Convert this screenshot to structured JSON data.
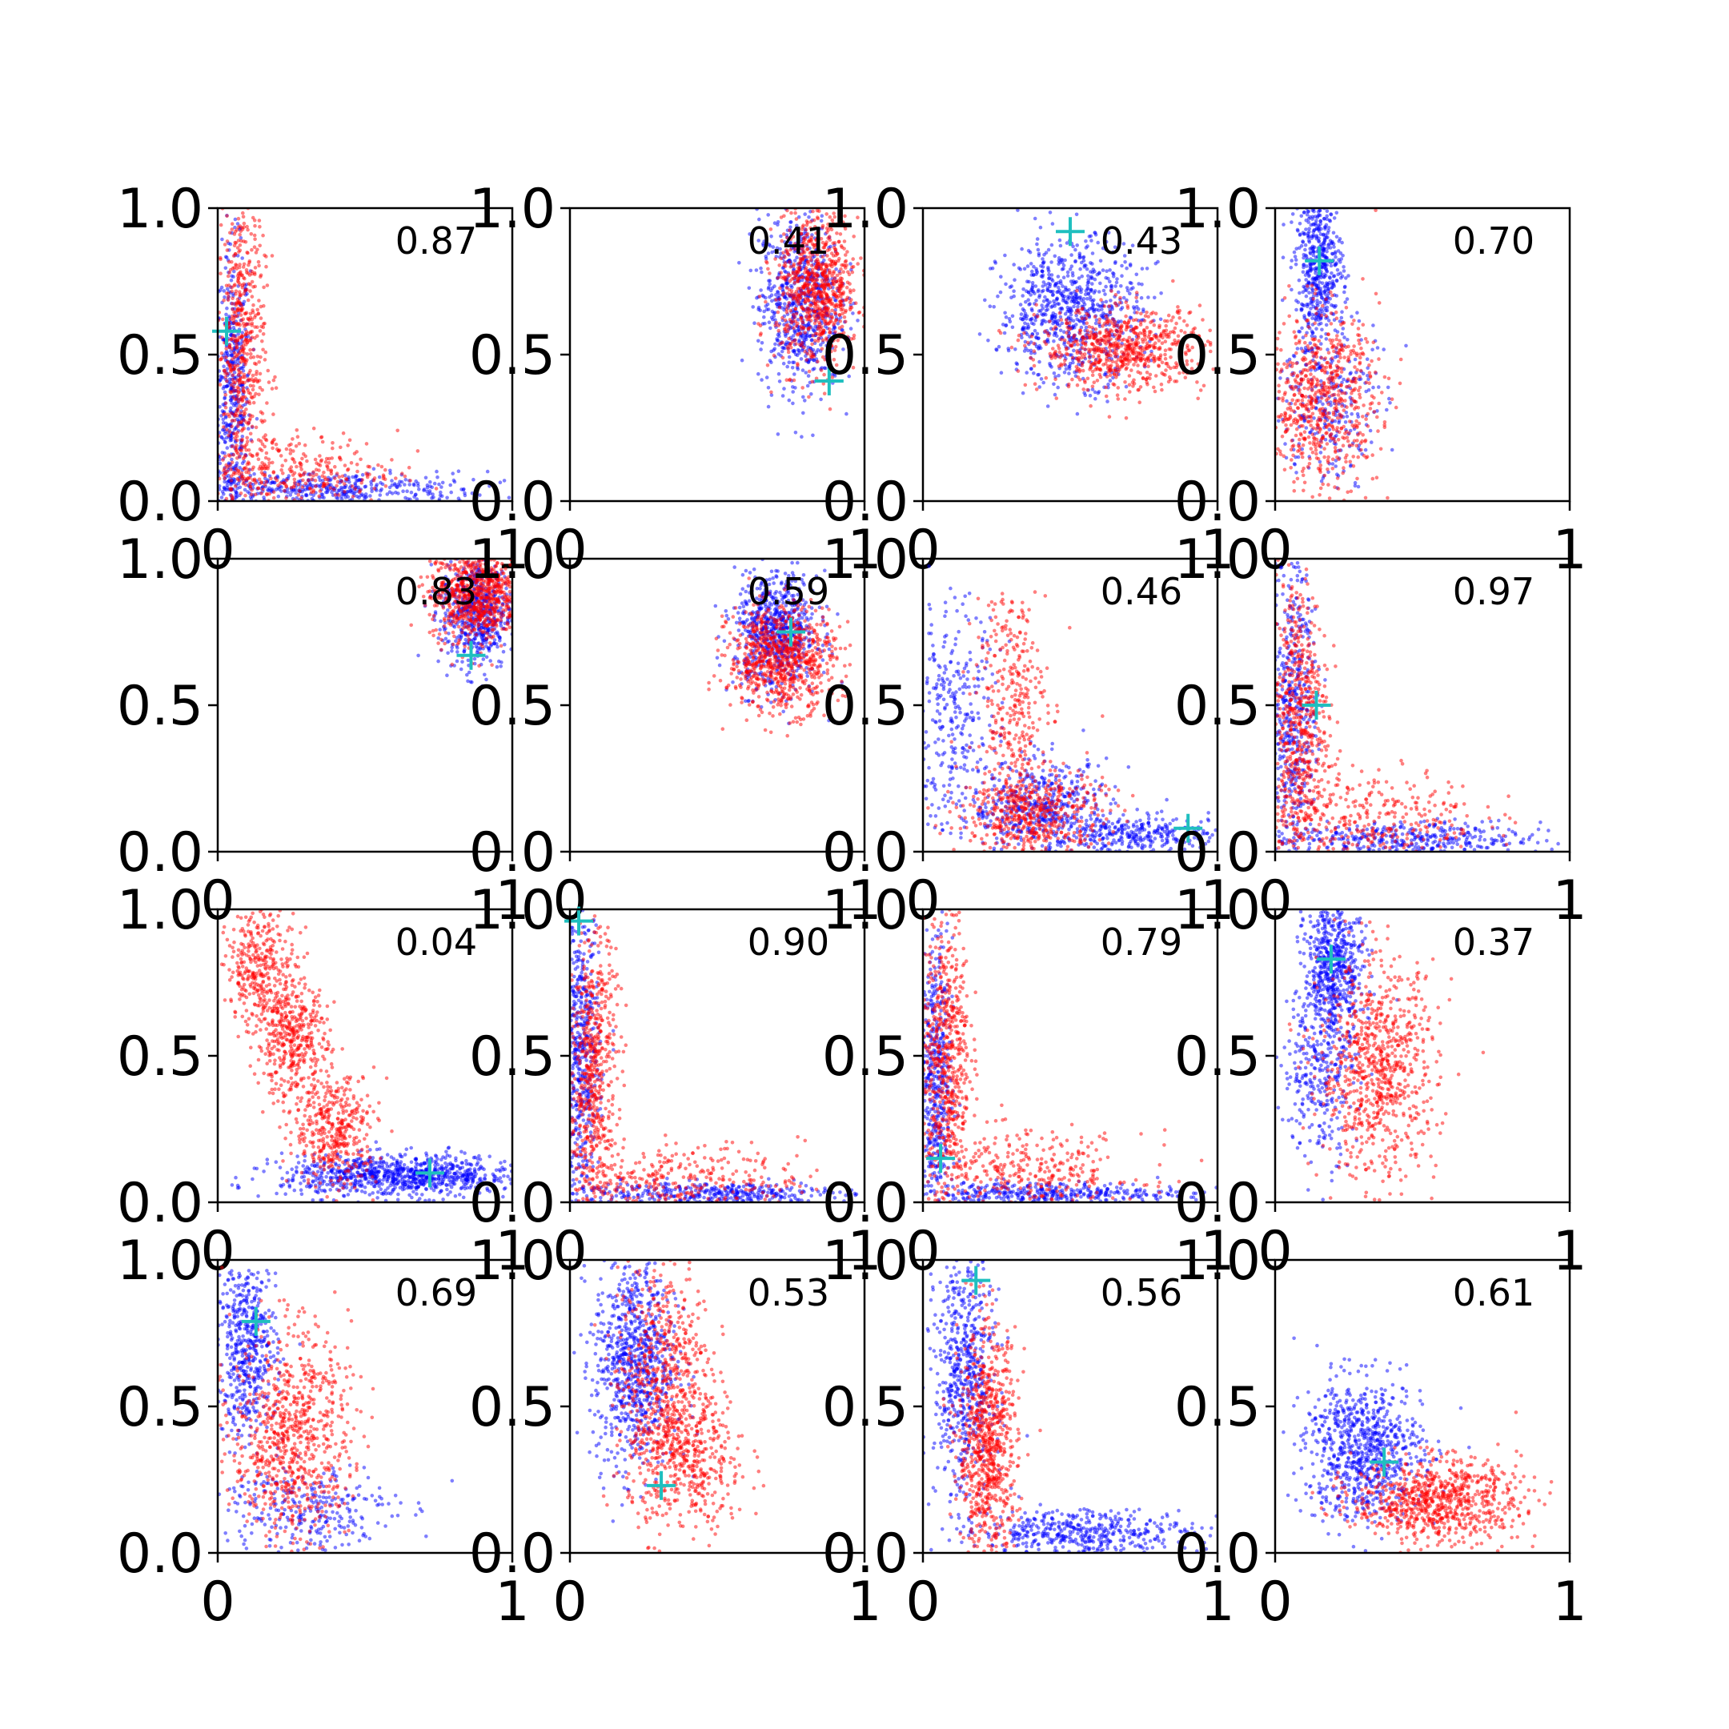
{
  "figure": {
    "rows": 4,
    "cols": 4,
    "colors": {
      "series_a": "#0000ff",
      "series_b": "#ff0000",
      "marker": "#1fbfbf",
      "axes": "#000000"
    }
  },
  "chart_data": [
    {
      "type": "scatter",
      "panel": 1,
      "label": "0.87",
      "xlim": [
        0,
        1
      ],
      "ylim": [
        0,
        1
      ],
      "xticks": [
        "0",
        "1"
      ],
      "yticks": [
        "0.0",
        "0.5",
        "1.0"
      ],
      "marker": {
        "x": 0.03,
        "y": 0.58
      },
      "series": [
        {
          "color": "#0000ff",
          "clusters": [
            {
              "cx": 0.05,
              "cy": 0.35,
              "sx": 0.03,
              "sy": 0.25,
              "n": 500
            },
            {
              "cx": 0.35,
              "cy": 0.04,
              "sx": 0.28,
              "sy": 0.03,
              "n": 450
            }
          ]
        },
        {
          "color": "#ff0000",
          "clusters": [
            {
              "cx": 0.08,
              "cy": 0.5,
              "sx": 0.04,
              "sy": 0.28,
              "n": 600
            },
            {
              "cx": 0.25,
              "cy": 0.1,
              "sx": 0.18,
              "sy": 0.07,
              "n": 350
            }
          ]
        }
      ]
    },
    {
      "type": "scatter",
      "panel": 2,
      "label": "0.41",
      "xlim": [
        0,
        1
      ],
      "ylim": [
        0,
        1
      ],
      "xticks": [
        "0",
        "1"
      ],
      "yticks": [
        "0.0",
        "0.5",
        "1.0"
      ],
      "marker": {
        "x": 0.88,
        "y": 0.41
      },
      "series": [
        {
          "color": "#0000ff",
          "clusters": [
            {
              "cx": 0.78,
              "cy": 0.68,
              "sx": 0.07,
              "sy": 0.15,
              "n": 700
            }
          ]
        },
        {
          "color": "#ff0000",
          "clusters": [
            {
              "cx": 0.84,
              "cy": 0.72,
              "sx": 0.07,
              "sy": 0.13,
              "n": 800
            }
          ]
        }
      ]
    },
    {
      "type": "scatter",
      "panel": 3,
      "label": "0.43",
      "xlim": [
        0,
        1
      ],
      "ylim": [
        0,
        1
      ],
      "xticks": [
        "0",
        "1"
      ],
      "yticks": [
        "0.0",
        "0.5",
        "1.0"
      ],
      "marker": {
        "x": 0.5,
        "y": 0.92
      },
      "series": [
        {
          "color": "#0000ff",
          "clusters": [
            {
              "cx": 0.5,
              "cy": 0.65,
              "sx": 0.12,
              "sy": 0.12,
              "n": 800
            }
          ]
        },
        {
          "color": "#ff0000",
          "clusters": [
            {
              "cx": 0.68,
              "cy": 0.52,
              "sx": 0.14,
              "sy": 0.07,
              "n": 700
            }
          ]
        }
      ]
    },
    {
      "type": "scatter",
      "panel": 4,
      "label": "0.70",
      "xlim": [
        0,
        1
      ],
      "ylim": [
        0,
        1
      ],
      "xticks": [
        "0",
        "1"
      ],
      "yticks": [
        "0.0",
        "0.5",
        "1.0"
      ],
      "marker": {
        "x": 0.15,
        "y": 0.82
      },
      "series": [
        {
          "color": "#0000ff",
          "clusters": [
            {
              "cx": 0.15,
              "cy": 0.8,
              "sx": 0.04,
              "sy": 0.12,
              "n": 500
            },
            {
              "cx": 0.18,
              "cy": 0.35,
              "sx": 0.08,
              "sy": 0.15,
              "n": 300
            }
          ]
        },
        {
          "color": "#ff0000",
          "clusters": [
            {
              "cx": 0.15,
              "cy": 0.35,
              "sx": 0.1,
              "sy": 0.15,
              "n": 700
            }
          ]
        }
      ]
    },
    {
      "type": "scatter",
      "panel": 5,
      "label": "0.83",
      "xlim": [
        0,
        1
      ],
      "ylim": [
        0,
        1
      ],
      "xticks": [
        "0",
        "1"
      ],
      "yticks": [
        "0.0",
        "0.5",
        "1.0"
      ],
      "marker": {
        "x": 0.86,
        "y": 0.67
      },
      "series": [
        {
          "color": "#0000ff",
          "clusters": [
            {
              "cx": 0.88,
              "cy": 0.82,
              "sx": 0.06,
              "sy": 0.1,
              "n": 600
            }
          ]
        },
        {
          "color": "#ff0000",
          "clusters": [
            {
              "cx": 0.88,
              "cy": 0.88,
              "sx": 0.08,
              "sy": 0.08,
              "n": 800
            }
          ]
        }
      ]
    },
    {
      "type": "scatter",
      "panel": 6,
      "label": "0.59",
      "xlim": [
        0,
        1
      ],
      "ylim": [
        0,
        1
      ],
      "xticks": [
        "0",
        "1"
      ],
      "yticks": [
        "0.0",
        "0.5",
        "1.0"
      ],
      "marker": {
        "x": 0.75,
        "y": 0.75
      },
      "series": [
        {
          "color": "#0000ff",
          "clusters": [
            {
              "cx": 0.7,
              "cy": 0.75,
              "sx": 0.07,
              "sy": 0.1,
              "n": 700
            }
          ]
        },
        {
          "color": "#ff0000",
          "clusters": [
            {
              "cx": 0.72,
              "cy": 0.66,
              "sx": 0.09,
              "sy": 0.09,
              "n": 800
            }
          ]
        }
      ]
    },
    {
      "type": "scatter",
      "panel": 7,
      "label": "0.46",
      "xlim": [
        0,
        1
      ],
      "ylim": [
        0,
        1
      ],
      "xticks": [
        "0",
        "1"
      ],
      "yticks": [
        "0.0",
        "0.5",
        "1.0"
      ],
      "marker": {
        "x": 0.9,
        "y": 0.08
      },
      "series": [
        {
          "color": "#0000ff",
          "clusters": [
            {
              "cx": 0.1,
              "cy": 0.45,
              "sx": 0.08,
              "sy": 0.2,
              "n": 300
            },
            {
              "cx": 0.4,
              "cy": 0.15,
              "sx": 0.12,
              "sy": 0.08,
              "n": 500
            },
            {
              "cx": 0.75,
              "cy": 0.06,
              "sx": 0.15,
              "sy": 0.03,
              "n": 300
            }
          ]
        },
        {
          "color": "#ff0000",
          "clusters": [
            {
              "cx": 0.3,
              "cy": 0.5,
              "sx": 0.06,
              "sy": 0.22,
              "n": 350
            },
            {
              "cx": 0.38,
              "cy": 0.12,
              "sx": 0.12,
              "sy": 0.08,
              "n": 500
            }
          ]
        }
      ]
    },
    {
      "type": "scatter",
      "panel": 8,
      "label": "0.97",
      "xlim": [
        0,
        1
      ],
      "ylim": [
        0,
        1
      ],
      "xticks": [
        "0",
        "1"
      ],
      "yticks": [
        "0.0",
        "0.5",
        "1.0"
      ],
      "marker": {
        "x": 0.14,
        "y": 0.5
      },
      "series": [
        {
          "color": "#0000ff",
          "clusters": [
            {
              "cx": 0.06,
              "cy": 0.5,
              "sx": 0.04,
              "sy": 0.25,
              "n": 500
            },
            {
              "cx": 0.4,
              "cy": 0.04,
              "sx": 0.25,
              "sy": 0.03,
              "n": 400
            }
          ]
        },
        {
          "color": "#ff0000",
          "clusters": [
            {
              "cx": 0.08,
              "cy": 0.45,
              "sx": 0.05,
              "sy": 0.25,
              "n": 600
            },
            {
              "cx": 0.3,
              "cy": 0.12,
              "sx": 0.2,
              "sy": 0.08,
              "n": 350
            }
          ]
        }
      ]
    },
    {
      "type": "scatter",
      "panel": 9,
      "label": "0.04",
      "xlim": [
        0,
        1
      ],
      "ylim": [
        0,
        1
      ],
      "xticks": [
        "0",
        "1"
      ],
      "yticks": [
        "0.0",
        "0.5",
        "1.0"
      ],
      "marker": {
        "x": 0.72,
        "y": 0.1
      },
      "series": [
        {
          "color": "#0000ff",
          "clusters": [
            {
              "cx": 0.62,
              "cy": 0.09,
              "sx": 0.2,
              "sy": 0.035,
              "n": 900
            }
          ]
        },
        {
          "color": "#ff0000",
          "clusters": [
            {
              "cx": 0.15,
              "cy": 0.8,
              "sx": 0.06,
              "sy": 0.1,
              "n": 350
            },
            {
              "cx": 0.25,
              "cy": 0.55,
              "sx": 0.06,
              "sy": 0.1,
              "n": 400
            },
            {
              "cx": 0.4,
              "cy": 0.25,
              "sx": 0.07,
              "sy": 0.1,
              "n": 400
            }
          ]
        }
      ]
    },
    {
      "type": "scatter",
      "panel": 10,
      "label": "0.90",
      "xlim": [
        0,
        1
      ],
      "ylim": [
        0,
        1
      ],
      "xticks": [
        "0",
        "1"
      ],
      "yticks": [
        "0.0",
        "0.5",
        "1.0"
      ],
      "marker": {
        "x": 0.03,
        "y": 0.96
      },
      "series": [
        {
          "color": "#0000ff",
          "clusters": [
            {
              "cx": 0.04,
              "cy": 0.5,
              "sx": 0.03,
              "sy": 0.25,
              "n": 500
            },
            {
              "cx": 0.45,
              "cy": 0.03,
              "sx": 0.25,
              "sy": 0.02,
              "n": 400
            }
          ]
        },
        {
          "color": "#ff0000",
          "clusters": [
            {
              "cx": 0.08,
              "cy": 0.45,
              "sx": 0.04,
              "sy": 0.25,
              "n": 600
            },
            {
              "cx": 0.35,
              "cy": 0.08,
              "sx": 0.22,
              "sy": 0.06,
              "n": 350
            }
          ]
        }
      ]
    },
    {
      "type": "scatter",
      "panel": 11,
      "label": "0.79",
      "xlim": [
        0,
        1
      ],
      "ylim": [
        0,
        1
      ],
      "xticks": [
        "0",
        "1"
      ],
      "yticks": [
        "0.0",
        "0.5",
        "1.0"
      ],
      "marker": {
        "x": 0.06,
        "y": 0.15
      },
      "series": [
        {
          "color": "#0000ff",
          "clusters": [
            {
              "cx": 0.04,
              "cy": 0.4,
              "sx": 0.03,
              "sy": 0.25,
              "n": 500
            },
            {
              "cx": 0.4,
              "cy": 0.03,
              "sx": 0.25,
              "sy": 0.02,
              "n": 400
            }
          ]
        },
        {
          "color": "#ff0000",
          "clusters": [
            {
              "cx": 0.08,
              "cy": 0.5,
              "sx": 0.04,
              "sy": 0.25,
              "n": 600
            },
            {
              "cx": 0.35,
              "cy": 0.1,
              "sx": 0.2,
              "sy": 0.07,
              "n": 350
            }
          ]
        }
      ]
    },
    {
      "type": "scatter",
      "panel": 12,
      "label": "0.37",
      "xlim": [
        0,
        1
      ],
      "ylim": [
        0,
        1
      ],
      "xticks": [
        "0",
        "1"
      ],
      "yticks": [
        "0.0",
        "0.5",
        "1.0"
      ],
      "marker": {
        "x": 0.19,
        "y": 0.83
      },
      "series": [
        {
          "color": "#0000ff",
          "clusters": [
            {
              "cx": 0.2,
              "cy": 0.8,
              "sx": 0.05,
              "sy": 0.12,
              "n": 600
            },
            {
              "cx": 0.15,
              "cy": 0.45,
              "sx": 0.06,
              "sy": 0.15,
              "n": 300
            }
          ]
        },
        {
          "color": "#ff0000",
          "clusters": [
            {
              "cx": 0.35,
              "cy": 0.45,
              "sx": 0.1,
              "sy": 0.18,
              "n": 800
            }
          ]
        }
      ]
    },
    {
      "type": "scatter",
      "panel": 13,
      "label": "0.69",
      "xlim": [
        0,
        1
      ],
      "ylim": [
        0,
        1
      ],
      "xticks": [
        "0",
        "1"
      ],
      "yticks": [
        "0.0",
        "0.5",
        "1.0"
      ],
      "marker": {
        "x": 0.13,
        "y": 0.79
      },
      "series": [
        {
          "color": "#0000ff",
          "clusters": [
            {
              "cx": 0.1,
              "cy": 0.7,
              "sx": 0.05,
              "sy": 0.15,
              "n": 500
            },
            {
              "cx": 0.3,
              "cy": 0.15,
              "sx": 0.15,
              "sy": 0.08,
              "n": 300
            }
          ]
        },
        {
          "color": "#ff0000",
          "clusters": [
            {
              "cx": 0.25,
              "cy": 0.4,
              "sx": 0.1,
              "sy": 0.18,
              "n": 800
            }
          ]
        }
      ]
    },
    {
      "type": "scatter",
      "panel": 14,
      "label": "0.53",
      "xlim": [
        0,
        1
      ],
      "ylim": [
        0,
        1
      ],
      "xticks": [
        "0",
        "1"
      ],
      "yticks": [
        "0.0",
        "0.5",
        "1.0"
      ],
      "marker": {
        "x": 0.31,
        "y": 0.23
      },
      "series": [
        {
          "color": "#0000ff",
          "clusters": [
            {
              "cx": 0.22,
              "cy": 0.65,
              "sx": 0.07,
              "sy": 0.18,
              "n": 800
            }
          ]
        },
        {
          "color": "#ff0000",
          "clusters": [
            {
              "cx": 0.32,
              "cy": 0.6,
              "sx": 0.08,
              "sy": 0.2,
              "n": 600
            },
            {
              "cx": 0.4,
              "cy": 0.3,
              "sx": 0.1,
              "sy": 0.12,
              "n": 400
            }
          ]
        }
      ]
    },
    {
      "type": "scatter",
      "panel": 15,
      "label": "0.56",
      "xlim": [
        0,
        1
      ],
      "ylim": [
        0,
        1
      ],
      "xticks": [
        "0",
        "1"
      ],
      "yticks": [
        "0.0",
        "0.5",
        "1.0"
      ],
      "marker": {
        "x": 0.18,
        "y": 0.93
      },
      "series": [
        {
          "color": "#0000ff",
          "clusters": [
            {
              "cx": 0.14,
              "cy": 0.6,
              "sx": 0.05,
              "sy": 0.22,
              "n": 600
            },
            {
              "cx": 0.55,
              "cy": 0.07,
              "sx": 0.18,
              "sy": 0.04,
              "n": 450
            }
          ]
        },
        {
          "color": "#ff0000",
          "clusters": [
            {
              "cx": 0.22,
              "cy": 0.35,
              "sx": 0.05,
              "sy": 0.2,
              "n": 800
            }
          ]
        }
      ]
    },
    {
      "type": "scatter",
      "panel": 16,
      "label": "0.61",
      "xlim": [
        0,
        1
      ],
      "ylim": [
        0,
        1
      ],
      "xticks": [
        "0",
        "1"
      ],
      "yticks": [
        "0.0",
        "0.5",
        "1.0"
      ],
      "marker": {
        "x": 0.37,
        "y": 0.31
      },
      "series": [
        {
          "color": "#0000ff",
          "clusters": [
            {
              "cx": 0.3,
              "cy": 0.35,
              "sx": 0.1,
              "sy": 0.12,
              "n": 800
            }
          ]
        },
        {
          "color": "#ff0000",
          "clusters": [
            {
              "cx": 0.55,
              "cy": 0.18,
              "sx": 0.14,
              "sy": 0.07,
              "n": 800
            }
          ]
        }
      ]
    }
  ]
}
